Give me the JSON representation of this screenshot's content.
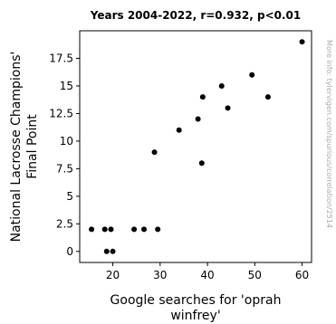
{
  "chart_data": {
    "type": "scatter",
    "title": "Years 2004-2022, r=0.932, p<0.01",
    "xlabel_lines": [
      "Google searches for 'oprah",
      "winfrey'"
    ],
    "ylabel_lines": [
      "National Lacrosse Champions'",
      "Final Point"
    ],
    "watermark": "More info: tylervigen.com/spurious/correlation/2514",
    "xlim": [
      13,
      62
    ],
    "ylim": [
      -1,
      20
    ],
    "xticks": [
      20,
      30,
      40,
      50,
      60
    ],
    "yticks": [
      0,
      2.5,
      5,
      7.5,
      10,
      12.5,
      15,
      17.5
    ],
    "xtick_labels": [
      "20",
      "30",
      "40",
      "50",
      "60"
    ],
    "ytick_labels": [
      "0",
      "2.5",
      "5",
      "7.5",
      "10",
      "12.5",
      "15",
      "17.5"
    ],
    "grid": false,
    "marker_color": "#000000",
    "points": [
      {
        "x": 15.5,
        "y": 2
      },
      {
        "x": 18.3,
        "y": 2
      },
      {
        "x": 18.7,
        "y": 0
      },
      {
        "x": 19.6,
        "y": 2
      },
      {
        "x": 20.0,
        "y": 0
      },
      {
        "x": 24.5,
        "y": 2
      },
      {
        "x": 26.6,
        "y": 2
      },
      {
        "x": 28.8,
        "y": 9
      },
      {
        "x": 29.5,
        "y": 2
      },
      {
        "x": 34.0,
        "y": 11
      },
      {
        "x": 38.0,
        "y": 12
      },
      {
        "x": 38.8,
        "y": 8
      },
      {
        "x": 39.0,
        "y": 14
      },
      {
        "x": 43.0,
        "y": 15
      },
      {
        "x": 44.3,
        "y": 13
      },
      {
        "x": 49.4,
        "y": 16
      },
      {
        "x": 52.8,
        "y": 14
      },
      {
        "x": 60.0,
        "y": 19
      }
    ]
  }
}
